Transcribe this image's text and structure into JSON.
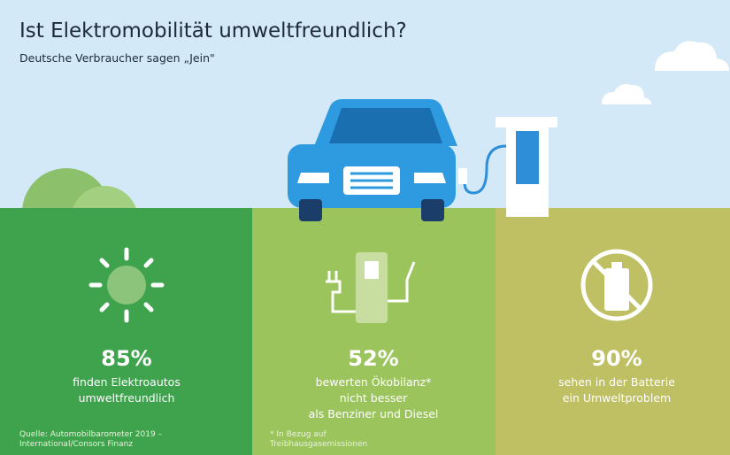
{
  "header": {
    "title": "Ist Elektromobilität umweltfreundlich?",
    "subtitle": "Deutsche Verbraucher sagen „Jein\""
  },
  "panels": [
    {
      "stat": "85%",
      "lines": [
        "finden Elektroautos",
        "umweltfreundlich"
      ],
      "note": [
        "Quelle: Automobilbarometer 2019 –",
        "International/Consors Finanz"
      ]
    },
    {
      "stat": "52%",
      "lines": [
        "bewerten Ökobilanz*",
        "nicht besser",
        "als Benziner und Diesel"
      ],
      "note": [
        "* In Bezug auf",
        "Treibhausgasemissionen"
      ]
    },
    {
      "stat": "90%",
      "lines": [
        "sehen in der Batterie",
        "ein Umweltproblem"
      ]
    }
  ]
}
